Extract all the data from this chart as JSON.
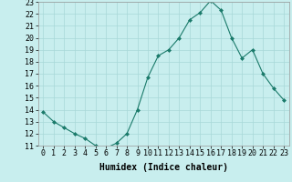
{
  "x": [
    0,
    1,
    2,
    3,
    4,
    5,
    6,
    7,
    8,
    9,
    10,
    11,
    12,
    13,
    14,
    15,
    16,
    17,
    18,
    19,
    20,
    21,
    22,
    23
  ],
  "y": [
    13.8,
    13.0,
    12.5,
    12.0,
    11.6,
    11.0,
    10.8,
    11.2,
    12.0,
    14.0,
    16.7,
    18.5,
    19.0,
    20.0,
    21.5,
    22.1,
    23.1,
    22.3,
    20.0,
    18.3,
    19.0,
    17.0,
    15.8,
    14.8
  ],
  "line_color": "#1a7a6a",
  "marker_color": "#1a7a6a",
  "bg_color": "#c8eeee",
  "grid_color": "#a8d8d8",
  "xlabel": "Humidex (Indice chaleur)",
  "ylim": [
    11,
    23
  ],
  "xlim": [
    -0.5,
    23.5
  ],
  "yticks": [
    11,
    12,
    13,
    14,
    15,
    16,
    17,
    18,
    19,
    20,
    21,
    22,
    23
  ],
  "xticks": [
    0,
    1,
    2,
    3,
    4,
    5,
    6,
    7,
    8,
    9,
    10,
    11,
    12,
    13,
    14,
    15,
    16,
    17,
    18,
    19,
    20,
    21,
    22,
    23
  ],
  "axis_fontsize": 6,
  "label_fontsize": 7
}
